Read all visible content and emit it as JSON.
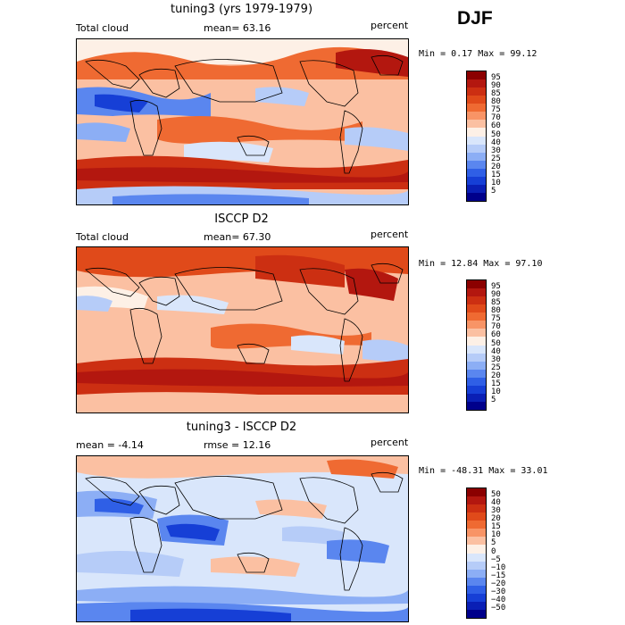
{
  "season": "DJF",
  "panels": [
    {
      "title": "tuning3 (yrs 1979-1979)",
      "left_label": "Total cloud",
      "center_label": "mean=  63.16",
      "right_label": "percent",
      "stats": "Min =   0.17 Max =  99.12",
      "colorbar": {
        "labels": [
          "95",
          "90",
          "85",
          "80",
          "75",
          "70",
          "60",
          "50",
          "40",
          "30",
          "25",
          "20",
          "15",
          "10",
          "5"
        ],
        "colors": [
          "#8b0000",
          "#b3170f",
          "#cc2f12",
          "#e04a1a",
          "#ef6a32",
          "#f89466",
          "#fbc0a2",
          "#fdf0e6",
          "#d9e6fb",
          "#b6ccf8",
          "#8caef5",
          "#5a86ef",
          "#2f5fe6",
          "#163fd6",
          "#0a1fb5",
          "#00008b"
        ]
      }
    },
    {
      "title": "ISCCP D2",
      "left_label": "Total cloud",
      "center_label": "mean=  67.30",
      "right_label": "percent",
      "stats": "Min =  12.84 Max =  97.10",
      "colorbar": {
        "labels": [
          "95",
          "90",
          "85",
          "80",
          "75",
          "70",
          "60",
          "50",
          "40",
          "30",
          "25",
          "20",
          "15",
          "10",
          "5"
        ],
        "colors": [
          "#8b0000",
          "#b3170f",
          "#cc2f12",
          "#e04a1a",
          "#ef6a32",
          "#f89466",
          "#fbc0a2",
          "#fdf0e6",
          "#d9e6fb",
          "#b6ccf8",
          "#8caef5",
          "#5a86ef",
          "#2f5fe6",
          "#163fd6",
          "#0a1fb5",
          "#00008b"
        ]
      }
    },
    {
      "title": "tuning3 - ISCCP D2",
      "left_label": "mean =  -4.14",
      "center_label": "rmse =  12.16",
      "right_label": "percent",
      "stats": "Min = -48.31 Max =  33.01",
      "colorbar": {
        "labels": [
          "50",
          "40",
          "30",
          "20",
          "15",
          "10",
          "5",
          "0",
          "−5",
          "−10",
          "−15",
          "−20",
          "−30",
          "−40",
          "−50"
        ],
        "colors": [
          "#8b0000",
          "#b3170f",
          "#cc2f12",
          "#e04a1a",
          "#ef6a32",
          "#f89466",
          "#fbc0a2",
          "#fdf0e6",
          "#d9e6fb",
          "#b6ccf8",
          "#8caef5",
          "#5a86ef",
          "#2f5fe6",
          "#163fd6",
          "#0a1fb5",
          "#00008b"
        ]
      }
    }
  ]
}
